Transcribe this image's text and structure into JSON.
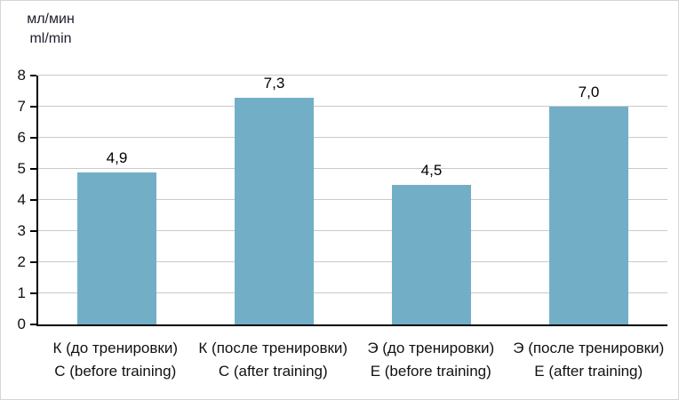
{
  "chart_data": {
    "type": "bar",
    "title": "",
    "ylabel_line1": "мл/мин",
    "ylabel_line2": "ml/min",
    "categories": [
      {
        "line1": "К (до тренировки)",
        "line2": "C (before training)"
      },
      {
        "line1": "К (после тренировки)",
        "line2": "C (after training)"
      },
      {
        "line1": "Э (до тренировки)",
        "line2": "E (before training)"
      },
      {
        "line1": "Э (после тренировки)",
        "line2": "E (after training)"
      }
    ],
    "values": [
      4.9,
      7.3,
      4.5,
      7.0
    ],
    "value_labels": [
      "4,9",
      "7,3",
      "4,5",
      "7,0"
    ],
    "ylim": [
      0,
      8
    ],
    "ytick_step": 1,
    "y_tick_labels": [
      "0",
      "1",
      "2",
      "3",
      "4",
      "5",
      "6",
      "7",
      "8"
    ],
    "grid": true,
    "legend": "none",
    "bar_color": "#72AFC7",
    "axis_color": "#000000",
    "gridline_color": "#c9c9c9"
  }
}
